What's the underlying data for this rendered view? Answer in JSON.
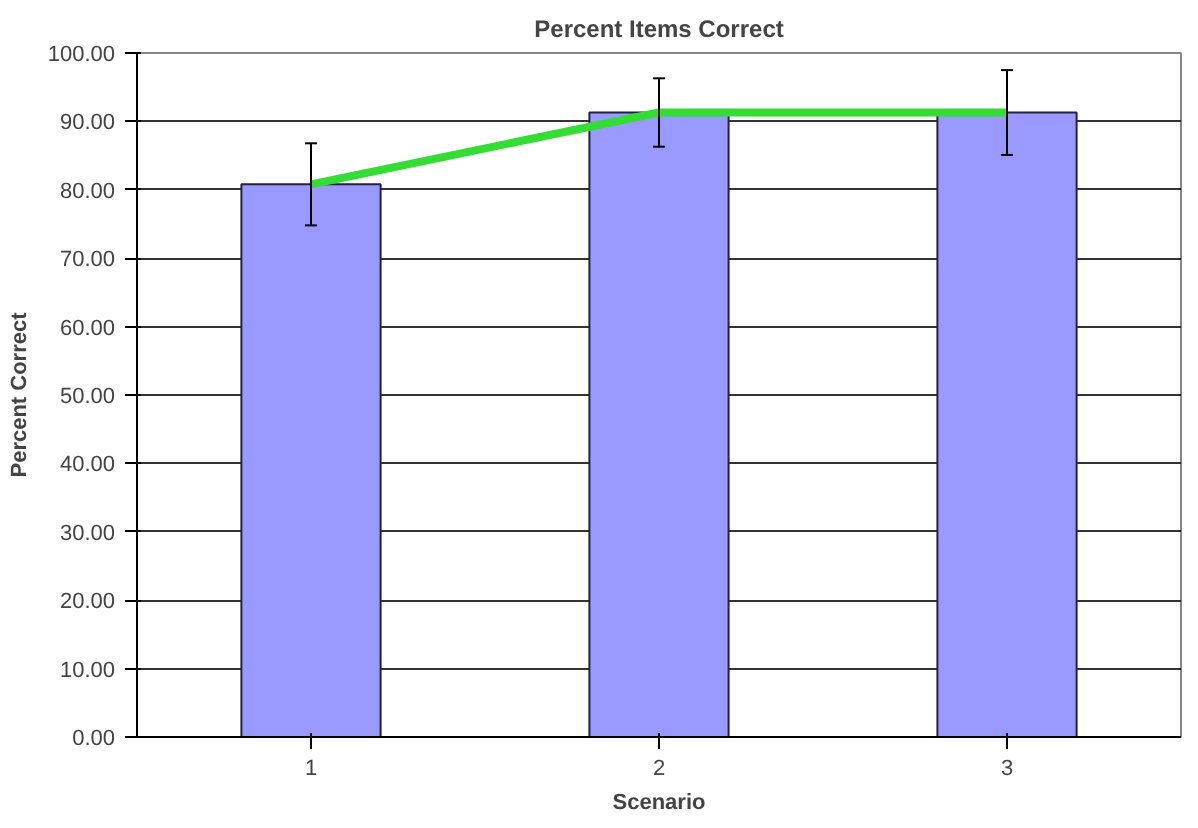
{
  "chart_data": {
    "type": "bar",
    "title": "Percent Items Correct",
    "xlabel": "Scenario",
    "ylabel": "Percent Correct",
    "categories": [
      "1",
      "2",
      "3"
    ],
    "series": [
      {
        "color": "#9999ff",
        "values": [
          80.8,
          91.3,
          91.3
        ],
        "errors": [
          6.0,
          5.0,
          6.2
        ]
      },
      {
        "type": "line",
        "color": "#33dd33",
        "values": [
          80.8,
          91.3,
          91.3
        ]
      }
    ],
    "ylim": [
      0,
      100
    ],
    "yticks": [
      {
        "value": 0,
        "label": "0.00"
      },
      {
        "value": 10,
        "label": "10.00"
      },
      {
        "value": 20,
        "label": "20.00"
      },
      {
        "value": 30,
        "label": "30.00"
      },
      {
        "value": 40,
        "label": "40.00"
      },
      {
        "value": 50,
        "label": "50.00"
      },
      {
        "value": 60,
        "label": "60.00"
      },
      {
        "value": 70,
        "label": "70.00"
      },
      {
        "value": 80,
        "label": "80.00"
      },
      {
        "value": 90,
        "label": "90.00"
      },
      {
        "value": 100,
        "label": "100.00"
      }
    ],
    "grid": "y",
    "marker": "none",
    "line_style": "solid"
  }
}
